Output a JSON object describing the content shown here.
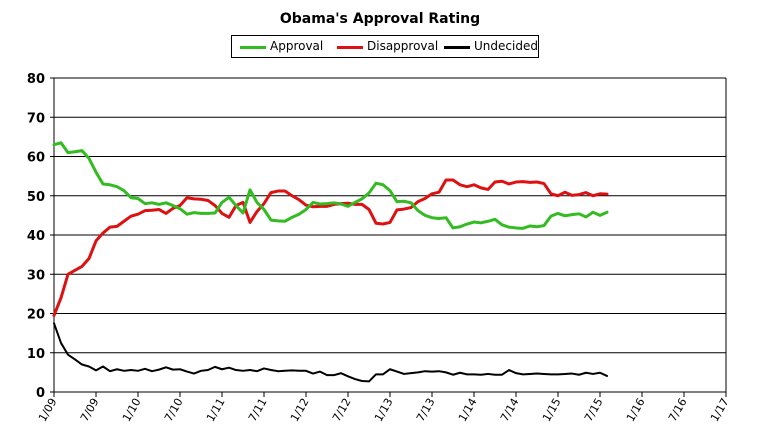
{
  "chart_data": {
    "type": "line",
    "title": "Obama's Approval Rating",
    "xlabel": "",
    "ylabel": "",
    "ylim": [
      0,
      80
    ],
    "yticks": [
      0,
      10,
      20,
      30,
      40,
      50,
      60,
      70,
      80
    ],
    "xticks": [
      "1/09",
      "7/09",
      "1/10",
      "7/10",
      "1/11",
      "7/11",
      "1/12",
      "7/12",
      "1/13",
      "7/13",
      "1/14",
      "7/14",
      "1/15",
      "7/15",
      "1/16",
      "7/16",
      "1/17"
    ],
    "xrange_months": [
      0,
      96
    ],
    "grid": "horizontal",
    "legend_position": "top",
    "series": [
      {
        "name": "Approval",
        "color": "#33bb22",
        "x": [
          0,
          1,
          2,
          3,
          4,
          5,
          6,
          7,
          8,
          9,
          10,
          11,
          12,
          13,
          14,
          15,
          16,
          17,
          18,
          19,
          20,
          21,
          22,
          23,
          24,
          25,
          26,
          27,
          28,
          29,
          30,
          31,
          32,
          33,
          34,
          35,
          36,
          37,
          38,
          39,
          40,
          41,
          42,
          43,
          44,
          45,
          46,
          47,
          48,
          49,
          50,
          51,
          52,
          53,
          54,
          55,
          56,
          57,
          58,
          59,
          60,
          61,
          62,
          63,
          64,
          65,
          66,
          67,
          68,
          69,
          70,
          71,
          72,
          73,
          74,
          75,
          76,
          77,
          78,
          79
        ],
        "values": [
          63,
          63.5,
          61,
          61.2,
          61.5,
          59.5,
          56,
          53,
          52.8,
          52.3,
          51.3,
          49.5,
          49.3,
          48,
          48.2,
          47.8,
          48.2,
          47.5,
          46.7,
          45.3,
          45.7,
          45.5,
          45.5,
          45.6,
          48.3,
          49.6,
          47.5,
          45.6,
          51.5,
          48.3,
          46.5,
          43.8,
          43.6,
          43.5,
          44.5,
          45.3,
          46.5,
          48.3,
          47.9,
          48,
          48.2,
          47.9,
          47.3,
          48.3,
          49.2,
          50.7,
          53.2,
          52.8,
          51.3,
          48.5,
          48.6,
          48.2,
          46.2,
          45,
          44.4,
          44.2,
          44.4,
          41.8,
          42.1,
          42.8,
          43.3,
          43.1,
          43.5,
          44,
          42.6,
          42,
          41.8,
          41.7,
          42.3,
          42.1,
          42.4,
          44.8,
          45.5,
          44.9,
          45.2,
          45.4,
          44.6,
          45.8,
          45,
          45.8
        ]
      },
      {
        "name": "Disapproval",
        "color": "#dd1111",
        "x": [
          0,
          1,
          2,
          3,
          4,
          5,
          6,
          7,
          8,
          9,
          10,
          11,
          12,
          13,
          14,
          15,
          16,
          17,
          18,
          19,
          20,
          21,
          22,
          23,
          24,
          25,
          26,
          27,
          28,
          29,
          30,
          31,
          32,
          33,
          34,
          35,
          36,
          37,
          38,
          39,
          40,
          41,
          42,
          43,
          44,
          45,
          46,
          47,
          48,
          49,
          50,
          51,
          52,
          53,
          54,
          55,
          56,
          57,
          58,
          59,
          60,
          61,
          62,
          63,
          64,
          65,
          66,
          67,
          68,
          69,
          70,
          71,
          72,
          73,
          74,
          75,
          76,
          77,
          78,
          79
        ],
        "values": [
          19.5,
          24,
          30,
          31,
          32,
          34,
          38.5,
          40.5,
          42,
          42.2,
          43.5,
          44.8,
          45.3,
          46.2,
          46.3,
          46.5,
          45.5,
          46.8,
          47.5,
          49.5,
          49.2,
          49.1,
          48.8,
          47.5,
          45.5,
          44.5,
          47.5,
          48.3,
          43.2,
          46,
          48,
          50.8,
          51.2,
          51.2,
          50,
          49,
          47.6,
          47.2,
          47.3,
          47.3,
          47.8,
          48,
          48.1,
          47.8,
          47.8,
          46.5,
          43,
          42.8,
          43.2,
          46.4,
          46.6,
          47,
          48.5,
          49.3,
          50.5,
          50.9,
          54,
          54,
          52.8,
          52.3,
          52.8,
          52,
          51.6,
          53.5,
          53.7,
          53,
          53.5,
          53.6,
          53.4,
          53.5,
          53.1,
          50.5,
          50,
          50.9,
          50.1,
          50.3,
          50.8,
          50,
          50.5,
          50.4
        ]
      },
      {
        "name": "Undecided",
        "color": "#000000",
        "x": [
          0,
          1,
          2,
          3,
          4,
          5,
          6,
          7,
          8,
          9,
          10,
          11,
          12,
          13,
          14,
          15,
          16,
          17,
          18,
          19,
          20,
          21,
          22,
          23,
          24,
          25,
          26,
          27,
          28,
          29,
          30,
          31,
          32,
          33,
          34,
          35,
          36,
          37,
          38,
          39,
          40,
          41,
          42,
          43,
          44,
          45,
          46,
          47,
          48,
          49,
          50,
          51,
          52,
          53,
          54,
          55,
          56,
          57,
          58,
          59,
          60,
          61,
          62,
          63,
          64,
          65,
          66,
          67,
          68,
          69,
          70,
          71,
          72,
          73,
          74,
          75,
          76,
          77,
          78,
          79
        ],
        "values": [
          17.5,
          12.5,
          9.5,
          8.3,
          7,
          6.5,
          5.5,
          6.5,
          5.3,
          5.8,
          5.4,
          5.6,
          5.4,
          5.9,
          5.3,
          5.7,
          6.3,
          5.7,
          5.8,
          5.2,
          4.7,
          5.4,
          5.6,
          6.4,
          5.8,
          6.2,
          5.6,
          5.4,
          5.6,
          5.3,
          6,
          5.6,
          5.3,
          5.4,
          5.5,
          5.4,
          5.4,
          4.7,
          5.2,
          4.3,
          4.3,
          4.8,
          4,
          3.3,
          2.8,
          2.7,
          4.5,
          4.5,
          5.8,
          5.2,
          4.6,
          4.8,
          5,
          5.3,
          5.2,
          5.3,
          5,
          4.4,
          4.9,
          4.5,
          4.5,
          4.4,
          4.6,
          4.4,
          4.4,
          5.6,
          4.8,
          4.5,
          4.6,
          4.7,
          4.6,
          4.5,
          4.5,
          4.6,
          4.7,
          4.4,
          4.9,
          4.6,
          4.9,
          4.1
        ]
      }
    ]
  }
}
